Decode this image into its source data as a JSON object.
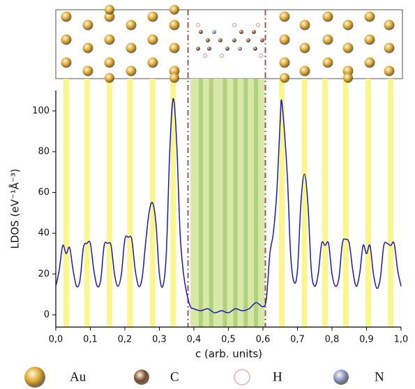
{
  "chart_data": {
    "type": "line",
    "x_label": "c (arb. units)",
    "y_label": "LDOS (eV⁻¹Å⁻³)",
    "xlim": [
      0,
      1
    ],
    "ylim": [
      -6,
      110
    ],
    "xticks": [
      {
        "value": 0,
        "label": "0,0"
      },
      {
        "value": 0.1,
        "label": "0,1"
      },
      {
        "value": 0.2,
        "label": "0,2"
      },
      {
        "value": 0.3,
        "label": "0,3"
      },
      {
        "value": 0.4,
        "label": "0,4"
      },
      {
        "value": 0.5,
        "label": "0,5"
      },
      {
        "value": 0.6,
        "label": "0,6"
      },
      {
        "value": 0.7,
        "label": "0,7"
      },
      {
        "value": 0.8,
        "label": "0,8"
      },
      {
        "value": 0.9,
        "label": "0,9"
      },
      {
        "value": 1,
        "label": "1,0"
      }
    ],
    "yticks": [
      0,
      20,
      40,
      60,
      80,
      100
    ],
    "line_color": "#1a1ab4",
    "x": [
      0,
      0.01,
      0.02,
      0.03,
      0.04,
      0.05,
      0.06,
      0.07,
      0.08,
      0.09,
      0.1,
      0.11,
      0.12,
      0.13,
      0.14,
      0.15,
      0.16,
      0.17,
      0.18,
      0.19,
      0.2,
      0.21,
      0.22,
      0.23,
      0.24,
      0.25,
      0.26,
      0.27,
      0.28,
      0.29,
      0.3,
      0.31,
      0.32,
      0.33,
      0.34,
      0.35,
      0.36,
      0.37,
      0.38,
      0.39,
      0.4,
      0.42,
      0.44,
      0.46,
      0.48,
      0.5,
      0.52,
      0.54,
      0.56,
      0.58,
      0.6,
      0.61,
      0.62,
      0.63,
      0.64,
      0.65,
      0.655,
      0.67,
      0.68,
      0.69,
      0.7,
      0.71,
      0.72,
      0.73,
      0.74,
      0.75,
      0.76,
      0.77,
      0.78,
      0.79,
      0.8,
      0.81,
      0.82,
      0.83,
      0.84,
      0.85,
      0.86,
      0.87,
      0.88,
      0.89,
      0.9,
      0.91,
      0.92,
      0.93,
      0.94,
      0.95,
      0.96,
      0.97,
      0.98,
      0.99,
      1
    ],
    "values": [
      14,
      22,
      34,
      30,
      33,
      22,
      14,
      17,
      33,
      35,
      35,
      22,
      14,
      17,
      34,
      35,
      34,
      20,
      14,
      20,
      37,
      38,
      37,
      22,
      14,
      18,
      35,
      50,
      55,
      45,
      20,
      14,
      30,
      80,
      106,
      85,
      40,
      20,
      10,
      4,
      3,
      2,
      3,
      1,
      2,
      1,
      3,
      2,
      3,
      6,
      4,
      8,
      30,
      40,
      60,
      95,
      104,
      70,
      30,
      16,
      22,
      55,
      69,
      55,
      22,
      14,
      20,
      35,
      34,
      35,
      20,
      14,
      18,
      35,
      37,
      35,
      22,
      14,
      20,
      34,
      30,
      34,
      20,
      13,
      18,
      34,
      35,
      34,
      35,
      22,
      14
    ],
    "au_bands": [
      0.03,
      0.09,
      0.155,
      0.215,
      0.28,
      0.34,
      0.655,
      0.72,
      0.78,
      0.84,
      0.905,
      0.97
    ],
    "molecule_region": [
      0.39,
      0.605
    ],
    "molecule_bands": [
      0.42,
      0.45,
      0.49,
      0.52,
      0.55,
      0.58
    ],
    "interfaces": [
      0.383,
      0.607
    ],
    "legend": [
      {
        "name": "Au",
        "color": "#d9a020"
      },
      {
        "name": "C",
        "color": "#7a4a30"
      },
      {
        "name": "H",
        "color": "#e8b0b0"
      },
      {
        "name": "N",
        "color": "#8090c8"
      }
    ]
  }
}
